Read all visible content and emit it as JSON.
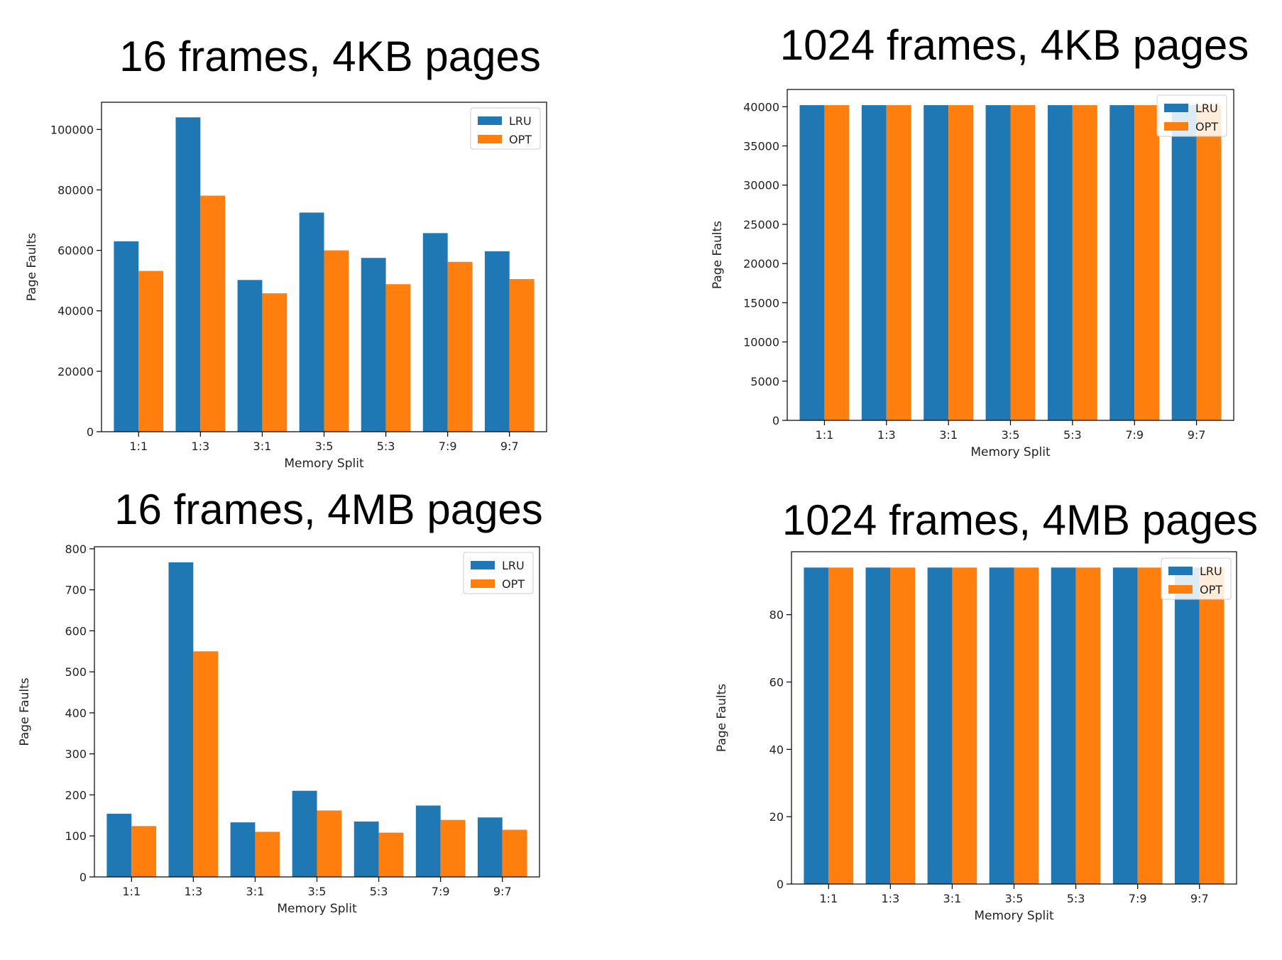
{
  "colors": {
    "LRU": "#1f77b4",
    "OPT": "#ff7f0e"
  },
  "chart_data": [
    {
      "type": "bar",
      "title": "16 frames, 4KB pages",
      "xlabel": "Memory Split",
      "ylabel": "Page Faults",
      "categories": [
        "1:1",
        "1:3",
        "3:1",
        "3:5",
        "5:3",
        "7:9",
        "9:7"
      ],
      "series": [
        {
          "name": "LRU",
          "values": [
            63000,
            104000,
            50200,
            72500,
            57500,
            65700,
            59700
          ]
        },
        {
          "name": "OPT",
          "values": [
            53200,
            78100,
            45800,
            60000,
            48800,
            56200,
            50500
          ]
        }
      ],
      "ylim": [
        0,
        109000
      ],
      "yticks": [
        0,
        20000,
        40000,
        60000,
        80000,
        100000
      ],
      "grid": false,
      "legend": "top-right"
    },
    {
      "type": "bar",
      "title": "1024 frames, 4KB pages",
      "xlabel": "Memory Split",
      "ylabel": "Page Faults",
      "categories": [
        "1:1",
        "1:3",
        "3:1",
        "3:5",
        "5:3",
        "7:9",
        "9:7"
      ],
      "series": [
        {
          "name": "LRU",
          "values": [
            40200,
            40200,
            40200,
            40200,
            40200,
            40200,
            40200
          ]
        },
        {
          "name": "OPT",
          "values": [
            40200,
            40200,
            40200,
            40200,
            40200,
            40200,
            40200
          ]
        }
      ],
      "ylim": [
        0,
        42200
      ],
      "yticks": [
        0,
        5000,
        10000,
        15000,
        20000,
        25000,
        30000,
        35000,
        40000
      ],
      "grid": false,
      "legend": "top-right"
    },
    {
      "type": "bar",
      "title": "16 frames, 4MB pages",
      "xlabel": "Memory Split",
      "ylabel": "Page Faults",
      "categories": [
        "1:1",
        "1:3",
        "3:1",
        "3:5",
        "5:3",
        "7:9",
        "9:7"
      ],
      "series": [
        {
          "name": "LRU",
          "values": [
            154,
            767,
            133,
            210,
            135,
            174,
            145
          ]
        },
        {
          "name": "OPT",
          "values": [
            124,
            550,
            110,
            162,
            108,
            139,
            115
          ]
        }
      ],
      "ylim": [
        0,
        805
      ],
      "yticks": [
        0,
        100,
        200,
        300,
        400,
        500,
        600,
        700,
        800
      ],
      "grid": false,
      "legend": "top-right"
    },
    {
      "type": "bar",
      "title": "1024 frames, 4MB pages",
      "xlabel": "Memory Split",
      "ylabel": "Page Faults",
      "categories": [
        "1:1",
        "1:3",
        "3:1",
        "3:5",
        "5:3",
        "7:9",
        "9:7"
      ],
      "series": [
        {
          "name": "LRU",
          "values": [
            94,
            94,
            94,
            94,
            94,
            94,
            94
          ]
        },
        {
          "name": "OPT",
          "values": [
            94,
            94,
            94,
            94,
            94,
            94,
            94
          ]
        }
      ],
      "ylim": [
        0,
        98.7
      ],
      "yticks": [
        0,
        20,
        40,
        60,
        80
      ],
      "grid": false,
      "legend": "top-right"
    }
  ]
}
